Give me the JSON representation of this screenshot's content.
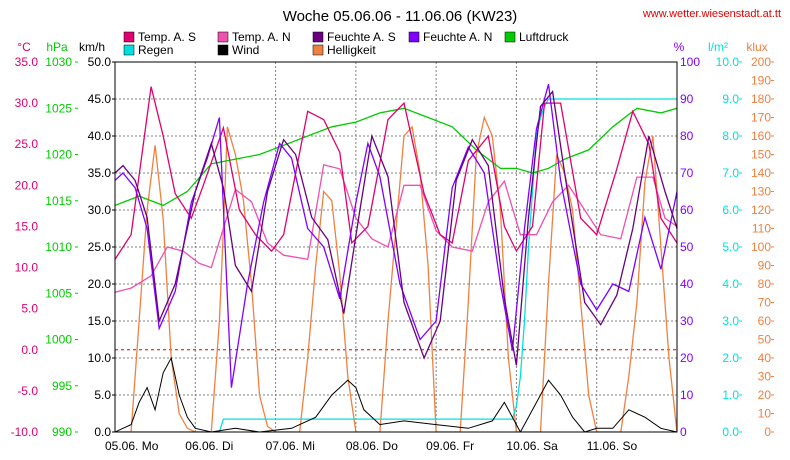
{
  "chart_data": {
    "type": "line",
    "title": "Woche 05.06.06 - 11.06.06 (KW23)",
    "source": "www.wetter.wiesenstadt.at.tt",
    "x_tick_labels": [
      "05.06. Mo",
      "06.06. Di",
      "07.06. Mi",
      "08.06. Do",
      "09.06. Fr",
      "10.06. Sa",
      "11.06. So"
    ],
    "x_range_days": [
      0,
      7
    ],
    "grid": true,
    "legend_placement": "top",
    "legend": [
      {
        "label": "Temp. A. S",
        "color": "#e0006e"
      },
      {
        "label": "Temp. A. N",
        "color": "#f050b0"
      },
      {
        "label": "Feuchte A. S",
        "color": "#6a0080"
      },
      {
        "label": "Feuchte A. N",
        "color": "#8000ff"
      },
      {
        "label": "Luftdruck",
        "color": "#00cc00"
      },
      {
        "label": "Regen",
        "color": "#00e0e0"
      },
      {
        "label": "Wind",
        "color": "#000000"
      },
      {
        "label": "Helligkeit",
        "color": "#f08040"
      }
    ],
    "axes": {
      "temp": {
        "unit": "°C",
        "color": "#e0006e",
        "range": [
          -10,
          35
        ],
        "ticks": [
          "35.0",
          "30.0",
          "25.0",
          "20.0",
          "15.0",
          "10.0",
          "5.0",
          "0.0",
          "-5.0",
          "-10.0"
        ]
      },
      "pressure": {
        "unit": "hPa",
        "color": "#00cc00",
        "range": [
          990,
          1030
        ],
        "ticks": [
          "1030",
          "1025",
          "1020",
          "1015",
          "1010",
          "1005",
          "1000",
          "995",
          "990"
        ]
      },
      "wind": {
        "unit": "km/h",
        "color": "#000000",
        "range": [
          0,
          50
        ],
        "ticks": [
          "50.0",
          "45.0",
          "40.0",
          "35.0",
          "30.0",
          "25.0",
          "20.0",
          "15.0",
          "10.0",
          "5.0",
          "0.0"
        ]
      },
      "humidity": {
        "unit": "%",
        "color": "#8000ff",
        "range": [
          0,
          100
        ],
        "ticks": [
          "100",
          "90",
          "80",
          "70",
          "60",
          "50",
          "40",
          "30",
          "20",
          "10",
          "0"
        ]
      },
      "rain": {
        "unit": "l/m²",
        "color": "#00e0e0",
        "range": [
          0,
          10
        ],
        "ticks": [
          "10.0",
          "9.0",
          "8.0",
          "7.0",
          "6.0",
          "5.0",
          "4.0",
          "3.0",
          "2.0",
          "1.0",
          "0.0"
        ]
      },
      "light": {
        "unit": "klux",
        "color": "#f08040",
        "range": [
          0,
          200
        ],
        "ticks": [
          "200",
          "190",
          "180",
          "170",
          "160",
          "150",
          "140",
          "130",
          "120",
          "110",
          "100",
          "90",
          "80",
          "70",
          "60",
          "50",
          "40",
          "30",
          "20",
          "10",
          "0"
        ]
      }
    },
    "series": [
      {
        "name": "Temp. A. S",
        "axis": "temp",
        "color": "#e0006e",
        "x": [
          0,
          0.2,
          0.45,
          0.6,
          0.75,
          0.95,
          1.1,
          1.35,
          1.55,
          1.75,
          1.95,
          2.1,
          2.4,
          2.6,
          2.8,
          2.95,
          3.15,
          3.4,
          3.6,
          3.85,
          4.05,
          4.2,
          4.4,
          4.65,
          4.85,
          5.0,
          5.2,
          5.35,
          5.55,
          5.8,
          6.0,
          6.25,
          6.45,
          6.65,
          6.8,
          7.0
        ],
        "values": [
          11,
          14,
          32,
          26,
          19,
          16,
          20,
          27,
          17,
          14,
          12,
          14,
          29,
          28,
          24,
          13,
          15,
          28,
          30,
          19,
          14,
          13,
          23,
          26,
          15,
          12,
          15,
          30,
          30,
          16,
          14,
          22,
          29,
          25,
          16,
          13
        ]
      },
      {
        "name": "Temp. A. N",
        "axis": "temp",
        "color": "#f050b0",
        "x": [
          0,
          0.2,
          0.45,
          0.65,
          0.85,
          1.05,
          1.2,
          1.5,
          1.7,
          1.9,
          2.1,
          2.4,
          2.6,
          2.8,
          3.0,
          3.2,
          3.4,
          3.6,
          3.8,
          4.0,
          4.2,
          4.45,
          4.65,
          4.85,
          5.05,
          5.25,
          5.45,
          5.65,
          5.85,
          6.05,
          6.3,
          6.5,
          6.7,
          6.85,
          7.0
        ],
        "values": [
          7,
          7.5,
          9,
          12.5,
          12,
          10.5,
          10,
          19.5,
          18,
          13,
          11.5,
          11,
          22.5,
          22,
          16,
          13.5,
          12.5,
          20,
          20,
          14.5,
          12.5,
          12,
          18,
          20.5,
          14,
          14,
          18,
          20,
          17,
          14,
          13.5,
          21,
          21,
          16,
          15
        ]
      },
      {
        "name": "Feuchte A. S",
        "axis": "humidity",
        "color": "#6a0080",
        "x": [
          0,
          0.1,
          0.25,
          0.4,
          0.55,
          0.75,
          1.0,
          1.2,
          1.35,
          1.5,
          1.7,
          1.9,
          2.1,
          2.25,
          2.45,
          2.65,
          2.85,
          3.05,
          3.2,
          3.4,
          3.6,
          3.85,
          4.05,
          4.25,
          4.45,
          4.65,
          4.85,
          5.0,
          5.15,
          5.3,
          5.45,
          5.6,
          5.85,
          6.05,
          6.25,
          6.45,
          6.65,
          6.85,
          7.0
        ],
        "values": [
          70,
          72,
          68,
          58,
          30,
          40,
          65,
          78,
          66,
          45,
          38,
          65,
          79,
          75,
          58,
          52,
          32,
          60,
          80,
          69,
          35,
          20,
          30,
          68,
          79,
          72,
          36,
          18,
          58,
          88,
          92,
          70,
          35,
          29,
          37,
          55,
          80,
          65,
          55
        ]
      },
      {
        "name": "Feuchte A. N",
        "axis": "humidity",
        "color": "#8000ff",
        "x": [
          0,
          0.1,
          0.25,
          0.4,
          0.55,
          0.75,
          0.95,
          1.15,
          1.3,
          1.45,
          1.65,
          1.85,
          2.05,
          2.2,
          2.4,
          2.6,
          2.8,
          3.0,
          3.15,
          3.3,
          3.55,
          3.8,
          4.0,
          4.2,
          4.4,
          4.6,
          4.8,
          4.95,
          5.1,
          5.25,
          5.4,
          5.55,
          5.8,
          6.0,
          6.2,
          6.4,
          6.6,
          6.8,
          7.0
        ],
        "values": [
          68,
          70,
          66,
          55,
          28,
          38,
          62,
          74,
          85,
          12,
          40,
          62,
          78,
          74,
          55,
          50,
          36,
          62,
          78,
          69,
          40,
          25,
          30,
          66,
          77,
          70,
          40,
          22,
          55,
          82,
          94,
          68,
          40,
          33,
          40,
          38,
          58,
          44,
          65
        ]
      },
      {
        "name": "Luftdruck",
        "axis": "pressure",
        "color": "#00cc00",
        "x": [
          0,
          0.3,
          0.6,
          0.9,
          1.2,
          1.5,
          1.8,
          2.1,
          2.4,
          2.7,
          3.0,
          3.3,
          3.6,
          3.9,
          4.2,
          4.5,
          4.8,
          5.0,
          5.2,
          5.4,
          5.6,
          5.9,
          6.2,
          6.5,
          6.8,
          7.0
        ],
        "values": [
          1014.5,
          1015.5,
          1014.5,
          1016,
          1019,
          1019.5,
          1020,
          1021,
          1022,
          1023,
          1023.5,
          1024.5,
          1025,
          1024,
          1023,
          1020.5,
          1018.5,
          1018.5,
          1018,
          1018.5,
          1019.5,
          1020.5,
          1023,
          1025,
          1024.5,
          1025
        ]
      },
      {
        "name": "Regen",
        "axis": "rain",
        "color": "#00e0e0",
        "x": [
          0,
          1.3,
          1.35,
          4.95,
          5.0,
          5.05,
          5.1,
          5.15,
          5.2,
          5.25,
          5.3,
          5.35,
          5.4,
          5.45,
          7.0
        ],
        "values": [
          0,
          0,
          0.35,
          0.35,
          0.7,
          1.5,
          3.0,
          5.0,
          6.5,
          8.0,
          8.5,
          8.8,
          9.0,
          9.0,
          9.0
        ]
      },
      {
        "name": "Wind",
        "axis": "wind",
        "color": "#000000",
        "x": [
          0,
          0.1,
          0.2,
          0.3,
          0.4,
          0.5,
          0.6,
          0.7,
          0.8,
          0.9,
          1.0,
          1.2,
          1.5,
          1.8,
          2.2,
          2.5,
          2.7,
          2.9,
          3.0,
          3.1,
          3.3,
          3.6,
          4.0,
          4.4,
          4.7,
          4.85,
          4.95,
          5.05,
          5.2,
          5.4,
          5.55,
          5.7,
          5.85,
          6.0,
          6.2,
          6.4,
          6.6,
          6.8,
          7.0
        ],
        "values": [
          0,
          0.5,
          1,
          4,
          6,
          3,
          8,
          10,
          5,
          2,
          0.5,
          0,
          0.5,
          0,
          0.5,
          2,
          5,
          7,
          6,
          3,
          1,
          1.5,
          1,
          0.5,
          1.5,
          4,
          2,
          0,
          3,
          7,
          5,
          2,
          0,
          0.5,
          0.5,
          3,
          2,
          0.5,
          0
        ]
      },
      {
        "name": "Helligkeit",
        "axis": "light",
        "color": "#f08040",
        "x": [
          0,
          0.2,
          0.3,
          0.4,
          0.5,
          0.6,
          0.7,
          0.8,
          0.9,
          1.0,
          1.2,
          1.3,
          1.35,
          1.4,
          1.5,
          1.6,
          1.7,
          1.8,
          1.9,
          2.0,
          2.3,
          2.4,
          2.5,
          2.6,
          2.7,
          2.8,
          2.9,
          3.0,
          3.3,
          3.4,
          3.5,
          3.6,
          3.7,
          3.8,
          3.9,
          4.0,
          4.3,
          4.4,
          4.5,
          4.6,
          4.7,
          4.8,
          4.9,
          5.0,
          5.3,
          5.4,
          5.5,
          5.6,
          5.7,
          5.8,
          5.9,
          6.0,
          6.3,
          6.4,
          6.5,
          6.6,
          6.7,
          6.8,
          6.9,
          7.0
        ],
        "values": [
          0,
          0,
          60,
          120,
          155,
          115,
          40,
          10,
          2,
          0,
          0,
          60,
          110,
          165,
          150,
          125,
          80,
          20,
          3,
          0,
          0,
          40,
          90,
          130,
          125,
          85,
          30,
          0,
          0,
          60,
          110,
          160,
          165,
          140,
          90,
          0,
          0,
          70,
          150,
          170,
          160,
          120,
          40,
          0,
          0,
          80,
          150,
          140,
          120,
          70,
          20,
          0,
          0,
          30,
          70,
          135,
          160,
          100,
          40,
          0
        ]
      }
    ]
  }
}
